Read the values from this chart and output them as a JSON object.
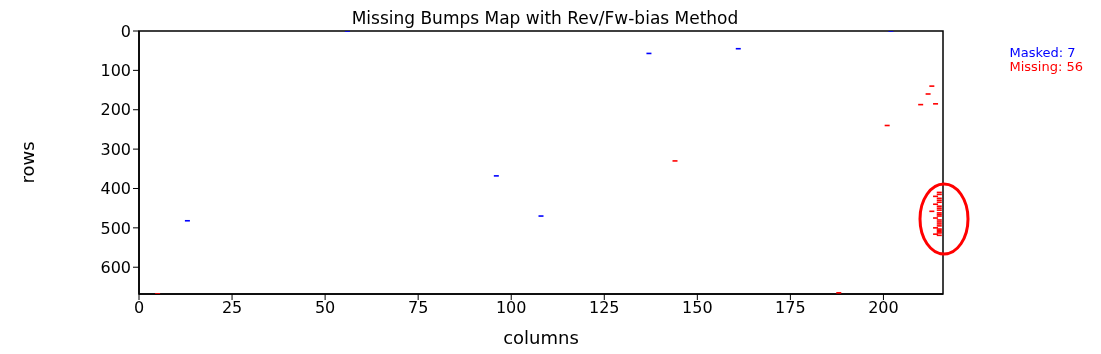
{
  "chart_data": {
    "type": "scatter",
    "title": "Missing Bumps Map with Rev/Fw-bias Method",
    "xlabel": "columns",
    "ylabel": "rows",
    "xlim": [
      0,
      216
    ],
    "ylim": [
      668,
      0
    ],
    "xticks": [
      0,
      25,
      50,
      75,
      100,
      125,
      150,
      175,
      200
    ],
    "yticks": [
      0,
      100,
      200,
      300,
      400,
      500,
      600
    ],
    "legend": "top right",
    "series": [
      {
        "name": "Masked: 7",
        "color": "#0000ff",
        "x": [
          56,
          202,
          137,
          161,
          96,
          108,
          13
        ],
        "values": [
          0,
          0,
          57,
          45,
          368,
          470,
          482
        ]
      },
      {
        "name": "Missing: 56",
        "color": "#ff0000",
        "x": [
          5,
          188,
          201,
          144,
          210,
          214,
          212,
          213,
          215,
          215,
          214,
          215,
          215,
          215,
          214,
          215,
          215,
          215,
          213,
          215,
          215,
          215,
          214,
          215,
          215,
          215,
          215,
          214,
          215,
          215,
          215,
          215,
          214,
          215
        ],
        "values": [
          668,
          665,
          240,
          330,
          187,
          185,
          160,
          140,
          410,
          415,
          420,
          425,
          430,
          435,
          440,
          445,
          450,
          455,
          458,
          462,
          466,
          470,
          475,
          480,
          485,
          490,
          495,
          500,
          503,
          506,
          510,
          513,
          516,
          519
        ]
      }
    ]
  }
}
